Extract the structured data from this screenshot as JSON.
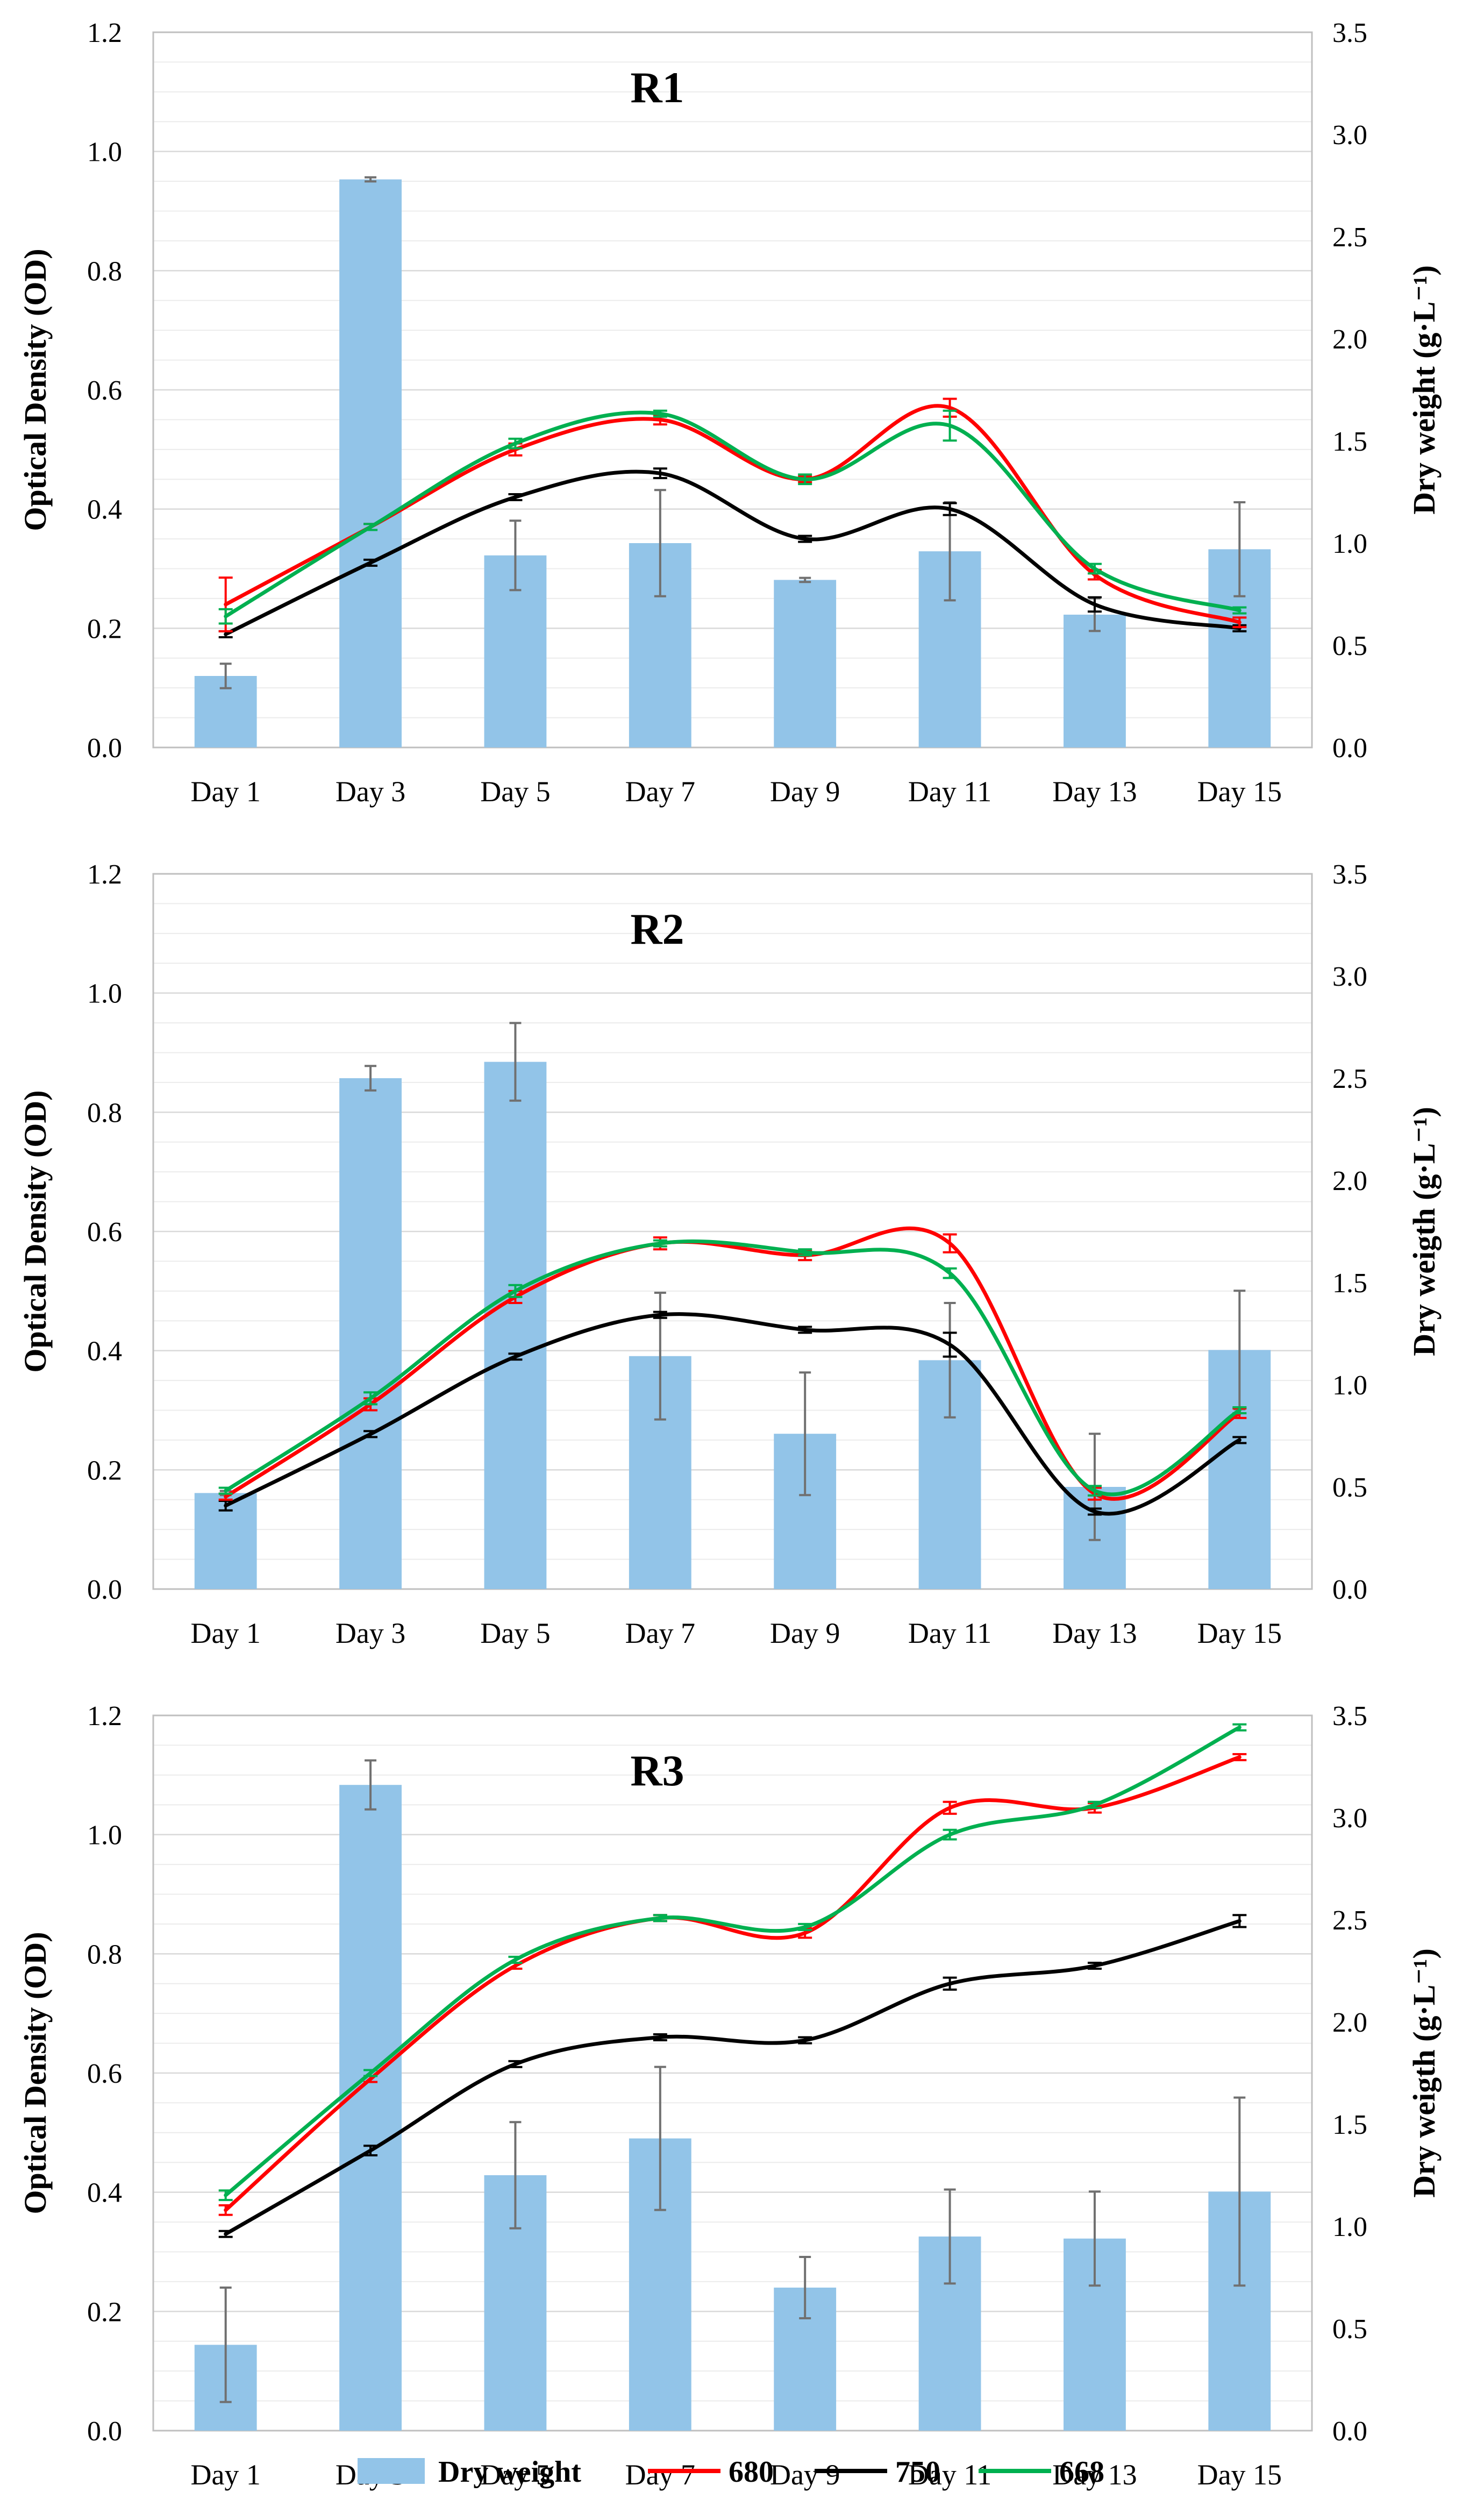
{
  "colors": {
    "dry_weight": "#92c4e8",
    "od680": "#ff0000",
    "od750": "#000000",
    "od668": "#00b050",
    "error_bar_bars": "#707070",
    "grid": "#d9d9d9",
    "axis": "#bfbfbf"
  },
  "legend": {
    "items": [
      {
        "label": "Dry weight",
        "kind": "bar",
        "color": "#92c4e8"
      },
      {
        "label": "680",
        "kind": "line",
        "color": "#ff0000"
      },
      {
        "label": "750",
        "kind": "line",
        "color": "#000000"
      },
      {
        "label": "668",
        "kind": "line",
        "color": "#00b050"
      }
    ]
  },
  "chart_data": [
    {
      "type": "bar+line",
      "title": "R1",
      "categories": [
        "Day 1",
        "Day 3",
        "Day 5",
        "Day 7",
        "Day 9",
        "Day 11",
        "Day 13",
        "Day 15"
      ],
      "ylabel": "Optical Density (OD)",
      "ylim": [
        0,
        1.2
      ],
      "yticks": [
        "0.0",
        "0.2",
        "0.4",
        "0.6",
        "0.8",
        "1.0",
        "1.2"
      ],
      "y2label": "Dry weight (g·L⁻¹)",
      "y2lim": [
        0,
        3.5
      ],
      "y2ticks": [
        "0.0",
        "0.5",
        "1.0",
        "1.5",
        "2.0",
        "2.5",
        "3.0",
        "3.5"
      ],
      "bars": {
        "name": "Dry weight",
        "values": [
          0.35,
          2.78,
          0.94,
          1.0,
          0.82,
          0.96,
          0.65,
          0.97
        ],
        "errors": [
          0.06,
          0.01,
          0.17,
          0.26,
          0.01,
          0.24,
          0.08,
          0.23
        ]
      },
      "series": [
        {
          "name": "680",
          "values": [
            0.24,
            0.37,
            0.5,
            0.55,
            0.45,
            0.57,
            0.29,
            0.21
          ],
          "errors": [
            0.045,
            0.005,
            0.01,
            0.008,
            0.005,
            0.015,
            0.008,
            0.008
          ]
        },
        {
          "name": "750",
          "values": [
            0.19,
            0.31,
            0.42,
            0.46,
            0.35,
            0.4,
            0.24,
            0.2
          ],
          "errors": [
            0.005,
            0.005,
            0.005,
            0.008,
            0.005,
            0.01,
            0.012,
            0.005
          ]
        },
        {
          "name": "668",
          "values": [
            0.22,
            0.37,
            0.51,
            0.56,
            0.45,
            0.54,
            0.3,
            0.23
          ],
          "errors": [
            0.012,
            0.005,
            0.008,
            0.005,
            0.008,
            0.025,
            0.008,
            0.005
          ]
        }
      ]
    },
    {
      "type": "bar+line",
      "title": "R2",
      "categories": [
        "Day 1",
        "Day 3",
        "Day 5",
        "Day 7",
        "Day 9",
        "Day 11",
        "Day 13",
        "Day 15"
      ],
      "ylabel": "Optical Density (OD)",
      "ylim": [
        0,
        1.2
      ],
      "yticks": [
        "0.0",
        "0.2",
        "0.4",
        "0.6",
        "0.8",
        "1.0",
        "1.2"
      ],
      "y2label": "Dry weigth (g·L⁻¹)",
      "y2lim": [
        0,
        3.5
      ],
      "y2ticks": [
        "0.0",
        "0.5",
        "1.0",
        "1.5",
        "2.0",
        "2.5",
        "3.0",
        "3.5"
      ],
      "bars": {
        "name": "Dry weight",
        "values": [
          0.47,
          2.5,
          2.58,
          1.14,
          0.76,
          1.12,
          0.5,
          1.17
        ],
        "errors": [
          0.01,
          0.06,
          0.19,
          0.31,
          0.3,
          0.28,
          0.26,
          0.29
        ]
      },
      "series": [
        {
          "name": "680",
          "values": [
            0.155,
            0.31,
            0.49,
            0.58,
            0.56,
            0.58,
            0.16,
            0.295
          ],
          "errors": [
            0.005,
            0.01,
            0.01,
            0.01,
            0.008,
            0.015,
            0.01,
            0.008
          ]
        },
        {
          "name": "750",
          "values": [
            0.14,
            0.26,
            0.39,
            0.46,
            0.435,
            0.41,
            0.13,
            0.25
          ],
          "errors": [
            0.008,
            0.005,
            0.005,
            0.005,
            0.005,
            0.02,
            0.005,
            0.005
          ]
        },
        {
          "name": "668",
          "values": [
            0.165,
            0.32,
            0.5,
            0.58,
            0.565,
            0.53,
            0.165,
            0.3
          ],
          "errors": [
            0.005,
            0.01,
            0.01,
            0.005,
            0.005,
            0.008,
            0.008,
            0.005
          ]
        }
      ]
    },
    {
      "type": "bar+line",
      "title": "R3",
      "categories": [
        "Day 1",
        "Day 3",
        "Day 5",
        "Day 7",
        "Day 9",
        "Day 11",
        "Day 13",
        "Day 15"
      ],
      "ylabel": "Optical Density (OD)",
      "ylim": [
        0,
        1.2
      ],
      "yticks": [
        "0.0",
        "0.2",
        "0.4",
        "0.6",
        "0.8",
        "1.0",
        "1.2"
      ],
      "y2label": "Dry weigth (g·L⁻¹)",
      "y2lim": [
        0,
        3.5
      ],
      "y2ticks": [
        "0.0",
        "0.5",
        "1.0",
        "1.5",
        "2.0",
        "2.5",
        "3.0",
        "3.5"
      ],
      "bars": {
        "name": "Dry weight",
        "values": [
          0.42,
          3.16,
          1.25,
          1.43,
          0.7,
          0.95,
          0.94,
          1.17
        ],
        "errors": [
          0.28,
          0.12,
          0.26,
          0.35,
          0.15,
          0.23,
          0.23,
          0.46
        ]
      },
      "series": [
        {
          "name": "680",
          "values": [
            0.37,
            0.59,
            0.78,
            0.86,
            0.835,
            1.045,
            1.045,
            1.13
          ],
          "errors": [
            0.008,
            0.005,
            0.005,
            0.005,
            0.008,
            0.01,
            0.008,
            0.005
          ]
        },
        {
          "name": "750",
          "values": [
            0.33,
            0.47,
            0.615,
            0.66,
            0.655,
            0.75,
            0.78,
            0.855
          ],
          "errors": [
            0.005,
            0.008,
            0.005,
            0.005,
            0.005,
            0.01,
            0.005,
            0.01
          ]
        },
        {
          "name": "668",
          "values": [
            0.395,
            0.6,
            0.79,
            0.86,
            0.845,
            1.0,
            1.05,
            1.18
          ],
          "errors": [
            0.008,
            0.005,
            0.005,
            0.005,
            0.005,
            0.008,
            0.005,
            0.005
          ]
        }
      ]
    }
  ]
}
